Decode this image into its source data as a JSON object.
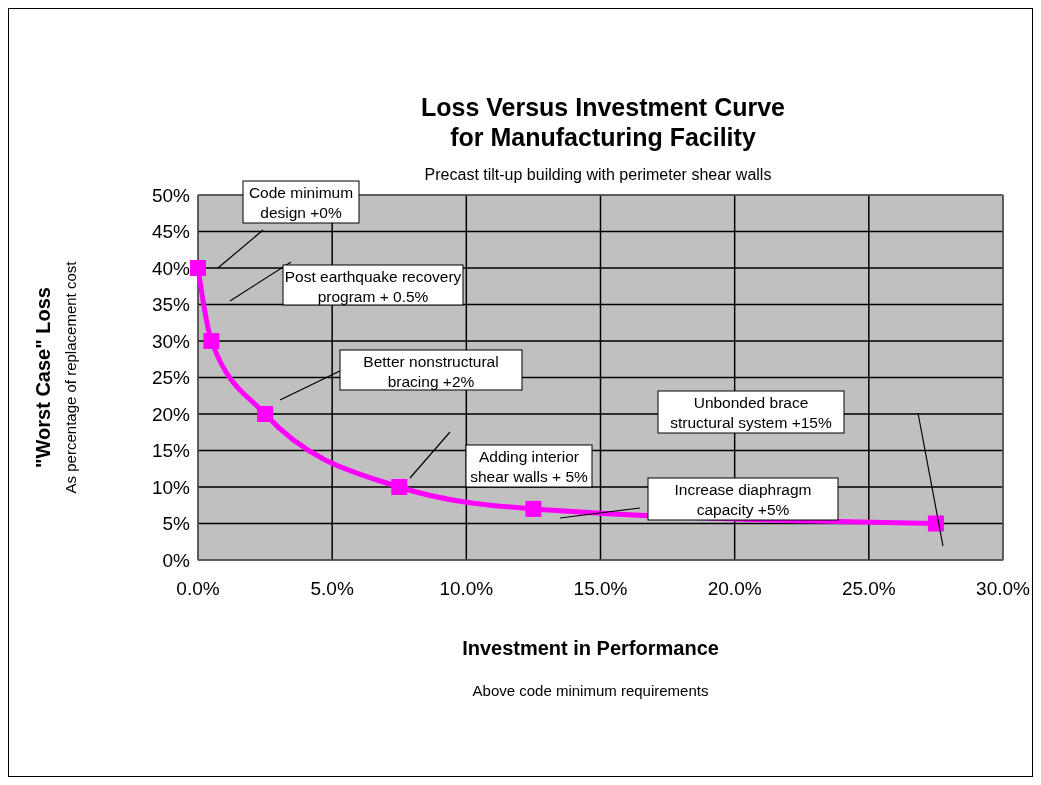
{
  "chart_data": {
    "type": "line",
    "title": "Loss Versus Investment Curve\nfor Manufacturing Facility",
    "subtitle": "Precast tilt-up building with perimeter shear walls",
    "xlabel": "Investment in Performance",
    "ylabel": "\"Worst Case\" Loss",
    "x": [
      0,
      0.5,
      2.5,
      7.5,
      12.5,
      27.5
    ],
    "series": [
      {
        "color": "#ff00ff",
        "values": [
          40,
          30,
          20,
          10,
          7,
          5
        ]
      }
    ],
    "xlim": [
      0,
      30
    ],
    "ylim": [
      0,
      50
    ],
    "xticks": [
      {
        "value": 0,
        "label": "0.0%"
      },
      {
        "value": 5,
        "label": "5.0%"
      },
      {
        "value": 10,
        "label": "10.0%"
      },
      {
        "value": 15,
        "label": "15.0%"
      },
      {
        "value": 20,
        "label": "20.0%"
      },
      {
        "value": 25,
        "label": "25.0%"
      },
      {
        "value": 30,
        "label": "30.0%"
      }
    ],
    "yticks": [
      {
        "value": 0,
        "label": "0%"
      },
      {
        "value": 5,
        "label": "5%"
      },
      {
        "value": 10,
        "label": "10%"
      },
      {
        "value": 15,
        "label": "15%"
      },
      {
        "value": 20,
        "label": "20%"
      },
      {
        "value": 25,
        "label": "25%"
      },
      {
        "value": 30,
        "label": "30%"
      },
      {
        "value": 35,
        "label": "35%"
      },
      {
        "value": 40,
        "label": "40%"
      },
      {
        "value": 45,
        "label": "45%"
      },
      {
        "value": 50,
        "label": "50%"
      }
    ],
    "grid": true,
    "marker": "square",
    "line_style": "solid",
    "annotations": [
      "Code minimum\ndesign +0%",
      "Post earthquake recovery\nprogram + 0.5%",
      "Better nonstructural\nbracing +2%",
      "Adding interior\nshear walls + 5%",
      "Increase diaphragm\ncapacity +5%",
      "Unbonded brace\nstructural system +15%",
      "As percentage of replacement cost",
      "Above code minimum requirements"
    ]
  }
}
